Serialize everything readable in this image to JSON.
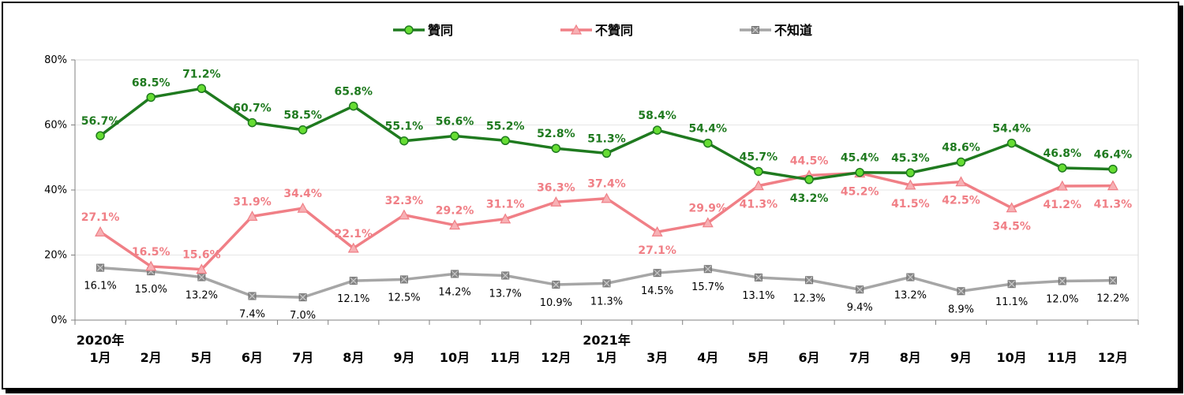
{
  "chart_data": {
    "type": "line",
    "categories": [
      [
        "2020年",
        "1月"
      ],
      [
        "2月"
      ],
      [
        "5月"
      ],
      [
        "6月"
      ],
      [
        "7月"
      ],
      [
        "8月"
      ],
      [
        "9月"
      ],
      [
        "10月"
      ],
      [
        "11月"
      ],
      [
        "12月"
      ],
      [
        "2021年",
        "1月"
      ],
      [
        "3月"
      ],
      [
        "4月"
      ],
      [
        "5月"
      ],
      [
        "6月"
      ],
      [
        "7月"
      ],
      [
        "8月"
      ],
      [
        "9月"
      ],
      [
        "10月"
      ],
      [
        "11月"
      ],
      [
        "12月"
      ]
    ],
    "y_ticks": [
      "0%",
      "20%",
      "40%",
      "60%",
      "80%"
    ],
    "ylim": [
      0,
      80
    ],
    "grid": "horizontal",
    "legend_position": "top-center",
    "series": [
      {
        "name": "贊同",
        "color": "#1f7a1f",
        "marker": "circle",
        "marker_fill": "#66dd33",
        "values": [
          56.7,
          68.5,
          71.2,
          60.7,
          58.5,
          65.8,
          55.1,
          56.6,
          55.2,
          52.8,
          51.3,
          58.4,
          54.4,
          45.7,
          43.2,
          45.4,
          45.3,
          48.6,
          54.4,
          46.8,
          46.4
        ],
        "labels": [
          "56.7%",
          "68.5%",
          "71.2%",
          "60.7%",
          "58.5%",
          "65.8%",
          "55.1%",
          "56.6%",
          "55.2%",
          "52.8%",
          "51.3%",
          "58.4%",
          "54.4%",
          "45.7%",
          "43.2%",
          "45.4%",
          "45.3%",
          "48.6%",
          "54.4%",
          "46.8%",
          "46.4%"
        ],
        "label_pos": [
          "up",
          "up",
          "up",
          "up",
          "up",
          "up",
          "up",
          "up",
          "up",
          "up",
          "up",
          "up",
          "up",
          "up",
          "down",
          "up",
          "up",
          "up",
          "up",
          "up",
          "up"
        ]
      },
      {
        "name": "不贊同",
        "color": "#f07f86",
        "marker": "triangle",
        "marker_fill": "#f7b0b4",
        "values": [
          27.1,
          16.5,
          15.6,
          31.9,
          34.4,
          22.1,
          32.3,
          29.2,
          31.1,
          36.3,
          37.4,
          27.1,
          29.9,
          41.3,
          44.5,
          45.2,
          41.5,
          42.5,
          34.5,
          41.2,
          41.3
        ],
        "labels": [
          "27.1%",
          "16.5%",
          "15.6%",
          "31.9%",
          "34.4%",
          "22.1%",
          "32.3%",
          "29.2%",
          "31.1%",
          "36.3%",
          "37.4%",
          "27.1%",
          "29.9%",
          "41.3%",
          "44.5%",
          "45.2%",
          "41.5%",
          "42.5%",
          "34.5%",
          "41.2%",
          "41.3%"
        ],
        "label_pos": [
          "up",
          "up",
          "up",
          "up",
          "up",
          "up",
          "up",
          "up",
          "up",
          "up",
          "up",
          "down",
          "up",
          "down",
          "up",
          "down",
          "down",
          "down",
          "down",
          "down",
          "down"
        ]
      },
      {
        "name": "不知道",
        "color": "#a6a6a6",
        "marker": "square-x",
        "marker_fill": "#8c8c8c",
        "values": [
          16.1,
          15.0,
          13.2,
          7.4,
          7.0,
          12.1,
          12.5,
          14.2,
          13.7,
          10.9,
          11.3,
          14.5,
          15.7,
          13.1,
          12.3,
          9.4,
          13.2,
          8.9,
          11.1,
          12.0,
          12.2
        ],
        "labels": [
          "16.1%",
          "15.0%",
          "13.2%",
          "7.4%",
          "7.0%",
          "12.1%",
          "12.5%",
          "14.2%",
          "13.7%",
          "10.9%",
          "11.3%",
          "14.5%",
          "15.7%",
          "13.1%",
          "12.3%",
          "9.4%",
          "13.2%",
          "8.9%",
          "11.1%",
          "12.0%",
          "12.2%"
        ],
        "label_pos": [
          "down",
          "down",
          "down",
          "down",
          "down",
          "down",
          "down",
          "down",
          "down",
          "down",
          "down",
          "down",
          "down",
          "down",
          "down",
          "down",
          "down",
          "down",
          "down",
          "down",
          "down"
        ]
      }
    ]
  }
}
